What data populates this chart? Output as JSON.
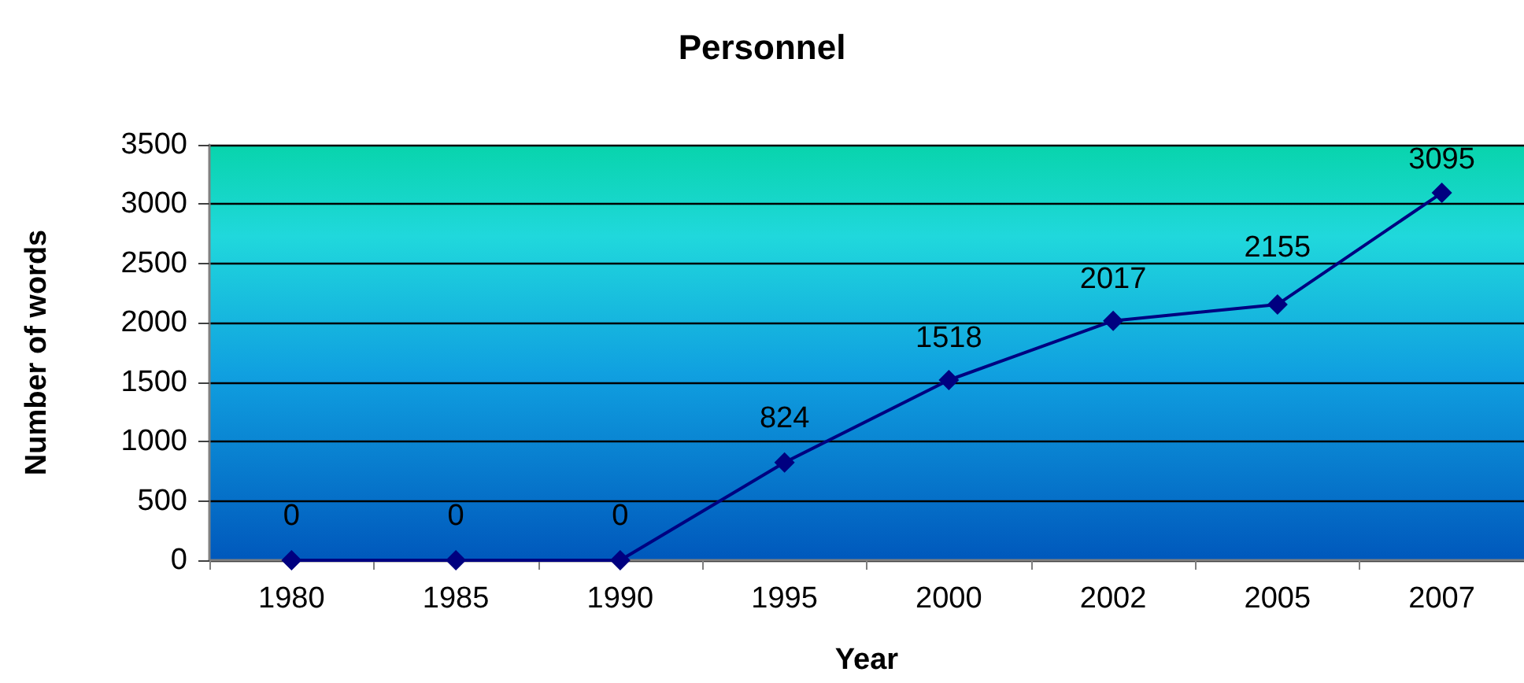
{
  "chart_data": {
    "type": "line",
    "title": "Personnel",
    "xlabel": "Year",
    "ylabel": "Number of words",
    "categories": [
      "1980",
      "1985",
      "1990",
      "1995",
      "2000",
      "2002",
      "2005",
      "2007"
    ],
    "series": [
      {
        "color": "#000080",
        "values": [
          0,
          0,
          0,
          824,
          1518,
          2017,
          2155,
          3095
        ]
      }
    ],
    "ylim": [
      0,
      3500
    ],
    "yticks": [
      0,
      500,
      1000,
      1500,
      2000,
      2500,
      3000,
      3500
    ],
    "grid": "y",
    "marker": "diamond",
    "line_style": "solid",
    "data_labels": true
  }
}
